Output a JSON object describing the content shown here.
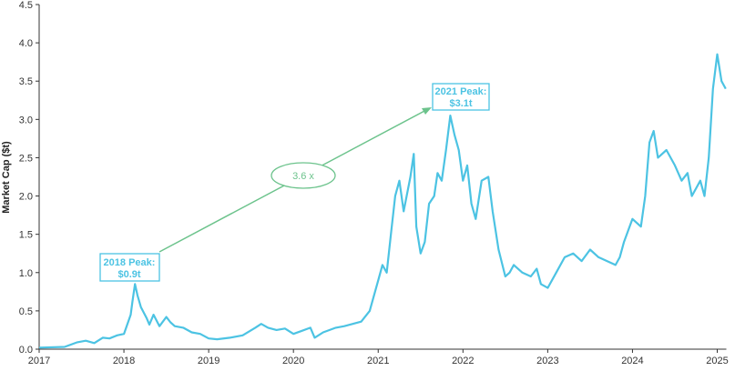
{
  "chart_data": {
    "type": "line",
    "title": "",
    "xlabel": "",
    "ylabel": "Market Cap ($t)",
    "xlim": [
      2017,
      2025.1
    ],
    "ylim": [
      0,
      4.5
    ],
    "x_ticks": [
      "2017",
      "2018",
      "2019",
      "2020",
      "2021",
      "2022",
      "2023",
      "2024",
      "2025"
    ],
    "y_ticks": [
      "0.0",
      "0.5",
      "1.0",
      "1.5",
      "2.0",
      "2.5",
      "3.0",
      "3.5",
      "4.0",
      "4.5"
    ],
    "grid": false,
    "series": [
      {
        "name": "Market Cap",
        "color": "#4cc3e3",
        "x": [
          2017.0,
          2017.3,
          2017.45,
          2017.55,
          2017.65,
          2017.75,
          2017.83,
          2017.92,
          2018.0,
          2018.08,
          2018.1,
          2018.13,
          2018.16,
          2018.2,
          2018.27,
          2018.3,
          2018.35,
          2018.42,
          2018.5,
          2018.55,
          2018.6,
          2018.7,
          2018.8,
          2018.9,
          2019.0,
          2019.1,
          2019.25,
          2019.4,
          2019.55,
          2019.62,
          2019.7,
          2019.8,
          2019.9,
          2020.0,
          2020.1,
          2020.2,
          2020.25,
          2020.35,
          2020.5,
          2020.6,
          2020.7,
          2020.8,
          2020.9,
          2021.0,
          2021.05,
          2021.1,
          2021.15,
          2021.2,
          2021.25,
          2021.3,
          2021.38,
          2021.42,
          2021.45,
          2021.5,
          2021.55,
          2021.6,
          2021.66,
          2021.7,
          2021.75,
          2021.8,
          2021.85,
          2021.9,
          2021.95,
          2022.0,
          2022.05,
          2022.1,
          2022.15,
          2022.22,
          2022.3,
          2022.35,
          2022.42,
          2022.5,
          2022.55,
          2022.6,
          2022.7,
          2022.8,
          2022.87,
          2022.92,
          2023.0,
          2023.1,
          2023.2,
          2023.3,
          2023.4,
          2023.5,
          2023.6,
          2023.7,
          2023.8,
          2023.85,
          2023.9,
          2024.0,
          2024.1,
          2024.15,
          2024.2,
          2024.25,
          2024.3,
          2024.4,
          2024.5,
          2024.58,
          2024.65,
          2024.7,
          2024.8,
          2024.85,
          2024.9,
          2024.95,
          2025.0,
          2025.05,
          2025.1
        ],
        "values": [
          0.02,
          0.03,
          0.09,
          0.11,
          0.08,
          0.15,
          0.14,
          0.18,
          0.2,
          0.45,
          0.62,
          0.85,
          0.7,
          0.55,
          0.4,
          0.32,
          0.45,
          0.3,
          0.42,
          0.35,
          0.3,
          0.28,
          0.22,
          0.2,
          0.14,
          0.13,
          0.15,
          0.18,
          0.28,
          0.33,
          0.28,
          0.25,
          0.27,
          0.2,
          0.24,
          0.28,
          0.15,
          0.22,
          0.28,
          0.3,
          0.33,
          0.36,
          0.5,
          0.9,
          1.1,
          1.0,
          1.5,
          2.0,
          2.2,
          1.8,
          2.25,
          2.55,
          1.6,
          1.25,
          1.4,
          1.9,
          2.0,
          2.3,
          2.2,
          2.6,
          3.05,
          2.8,
          2.6,
          2.2,
          2.4,
          1.9,
          1.7,
          2.2,
          2.25,
          1.8,
          1.3,
          0.95,
          1.0,
          1.1,
          1.0,
          0.95,
          1.05,
          0.85,
          0.8,
          1.0,
          1.2,
          1.25,
          1.15,
          1.3,
          1.2,
          1.15,
          1.1,
          1.2,
          1.4,
          1.7,
          1.6,
          2.0,
          2.7,
          2.85,
          2.5,
          2.6,
          2.4,
          2.2,
          2.3,
          2.0,
          2.2,
          2.0,
          2.5,
          3.4,
          3.85,
          3.5,
          3.4
        ]
      }
    ],
    "annotations": {
      "peak_2018": {
        "line1": "2018 Peak:",
        "line2": "$0.9t"
      },
      "peak_2021": {
        "line1": "2021 Peak:",
        "line2": "$3.1t"
      },
      "multiple": "3.6 x"
    },
    "annotation_color": "#6cc38c"
  }
}
